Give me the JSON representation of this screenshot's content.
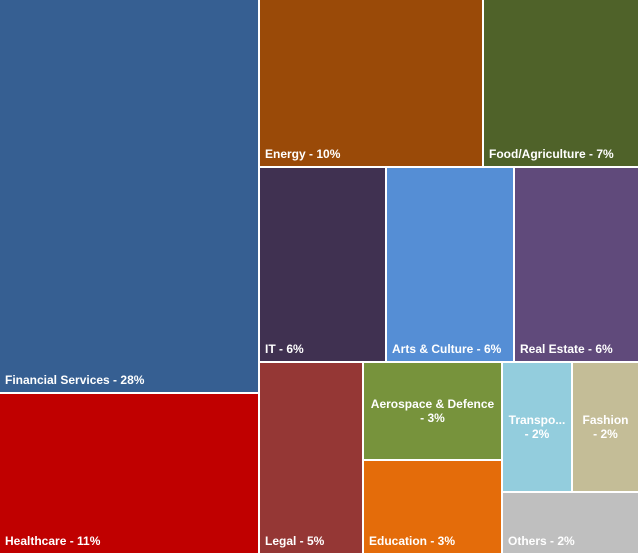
{
  "chart_data": {
    "type": "treemap",
    "items": [
      {
        "name": "Financial Services",
        "label": "Financial Services - 28%",
        "value": 28,
        "color": "#365f92"
      },
      {
        "name": "Healthcare",
        "label": "Healthcare - 11%",
        "value": 11,
        "color": "#c00000"
      },
      {
        "name": "Energy",
        "label": "Energy - 10%",
        "value": 10,
        "color": "#9a4a08"
      },
      {
        "name": "Food/Agriculture",
        "label": "Food/Agriculture - 7%",
        "value": 7,
        "color": "#4f6229"
      },
      {
        "name": "IT",
        "label": "IT - 6%",
        "value": 6,
        "color": "#403151"
      },
      {
        "name": "Arts & Culture",
        "label": "Arts & Culture - 6%",
        "value": 6,
        "color": "#558ed5"
      },
      {
        "name": "Real Estate",
        "label": "Real Estate - 6%",
        "value": 6,
        "color": "#604a7b"
      },
      {
        "name": "Legal",
        "label": "Legal - 5%",
        "value": 5,
        "color": "#953735"
      },
      {
        "name": "Aerospace & Defence",
        "label": "Aerospace & Defence - 3%",
        "value": 3,
        "color": "#77933c"
      },
      {
        "name": "Education",
        "label": "Education - 3%",
        "value": 3,
        "color": "#e46c0a"
      },
      {
        "name": "Transpo...",
        "label": "Transpo... - 2%",
        "value": 2,
        "color": "#93cddd"
      },
      {
        "name": "Fashion",
        "label": "Fashion - 2%",
        "value": 2,
        "color": "#c4bd97"
      },
      {
        "name": "Others",
        "label": "Others - 2%",
        "value": 2,
        "color": "#bfbfbf"
      }
    ]
  }
}
